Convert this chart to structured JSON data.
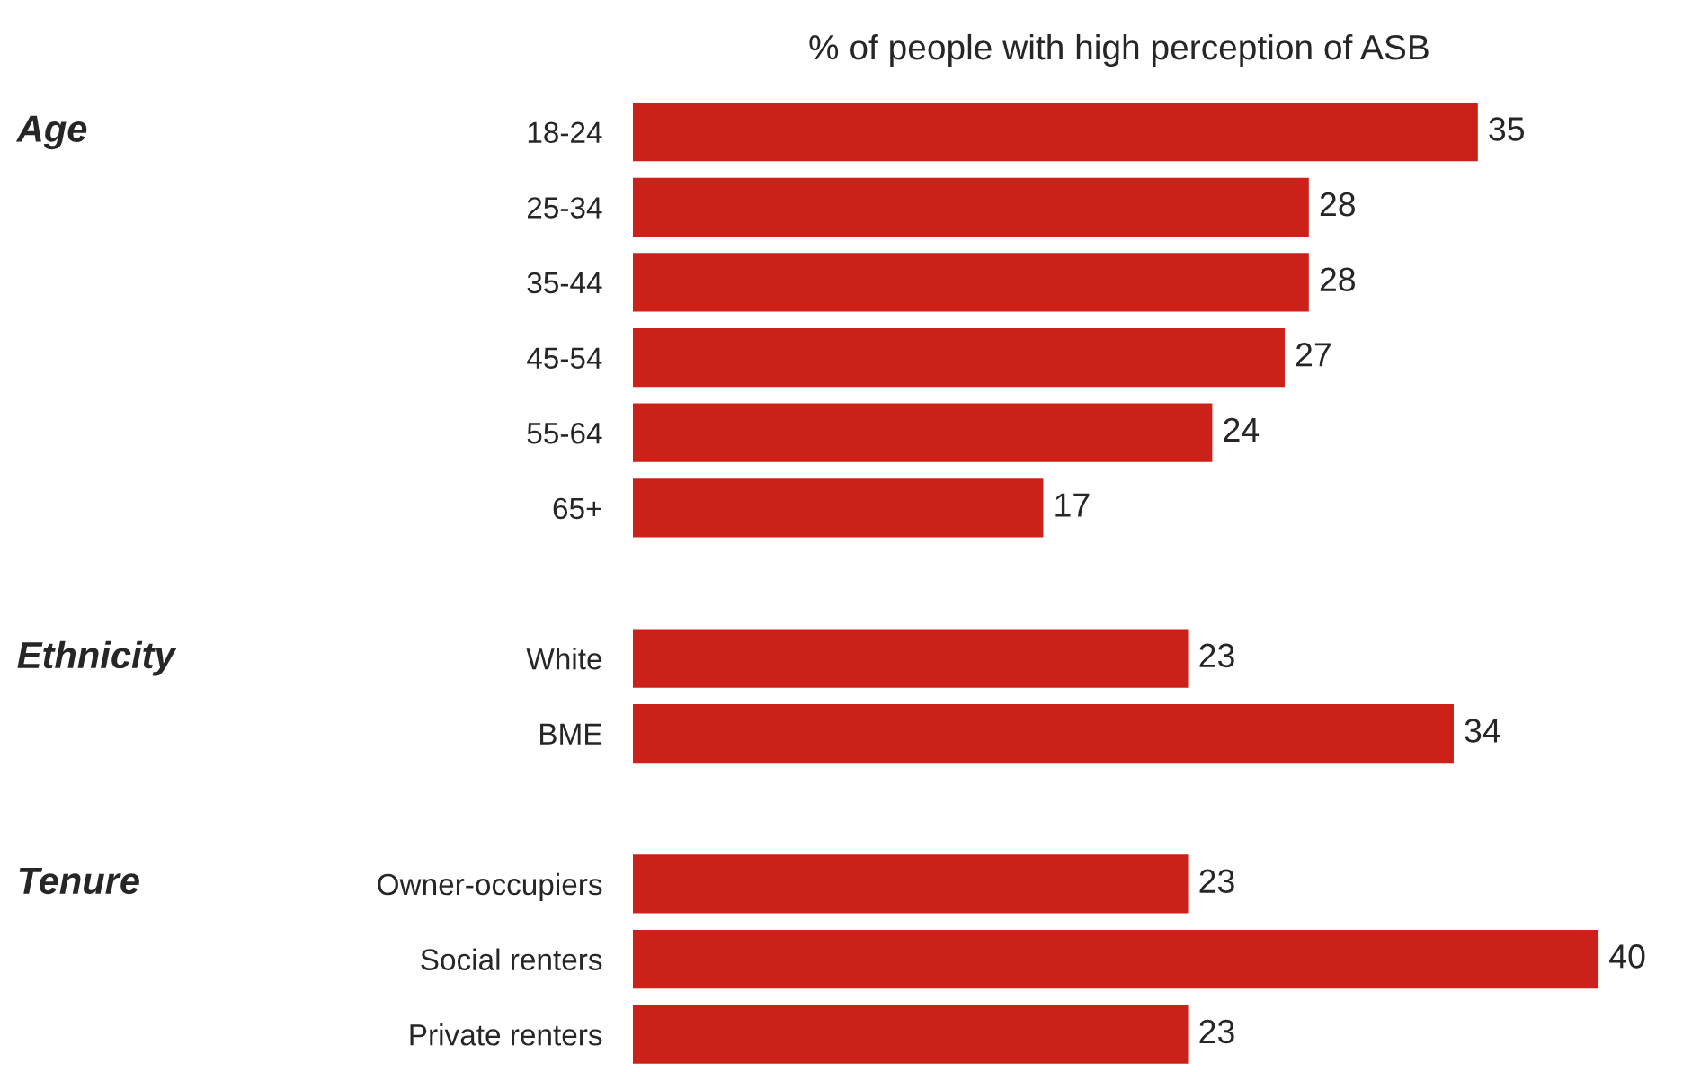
{
  "chart_data": {
    "type": "bar",
    "orientation": "horizontal",
    "title": "% of people with high perception of ASB",
    "categories": [
      "18-24",
      "25-34",
      "35-44",
      "45-54",
      "55-64",
      "65+",
      null,
      "White",
      "BME",
      null,
      "Owner-occupiers",
      "Social renters",
      "Private renters"
    ],
    "values": [
      35,
      28,
      28,
      27,
      24,
      17,
      null,
      23,
      34,
      null,
      23,
      40,
      23
    ],
    "color": "#cc2118",
    "data_labels": true,
    "annotations": [
      "Age",
      "Ethnicity",
      "Tenure"
    ]
  }
}
